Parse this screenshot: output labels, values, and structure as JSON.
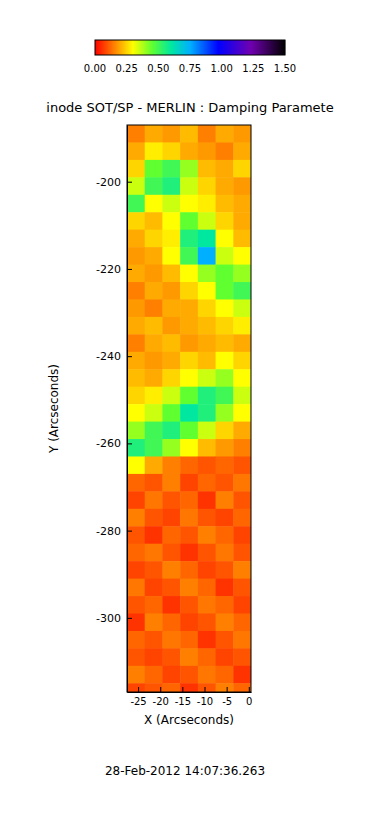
{
  "chart_data": {
    "type": "heatmap",
    "title": "inode SOT/SP - MERLIN : Damping Paramete",
    "x_label": "X (Arcseconds)",
    "y_label": "Y (Arcseconds)",
    "footer": "28-Feb-2012 14:07:36.263",
    "xlim": [
      -27.5,
      0.5
    ],
    "ylim": [
      -317,
      -187
    ],
    "xticks": [
      -25,
      -20,
      -15,
      -10,
      -5,
      0
    ],
    "yticks": [
      -300,
      -280,
      -260,
      -240,
      -220,
      -200
    ],
    "x_edges": [
      -27.5,
      -23.5,
      -19.5,
      -15.5,
      -11.5,
      -7.5,
      -3.5,
      0.5
    ],
    "y_edges": [
      -187,
      -191,
      -195,
      -199,
      -203,
      -207,
      -211,
      -215,
      -219,
      -223,
      -227,
      -231,
      -235,
      -239,
      -243,
      -247,
      -251,
      -255,
      -259,
      -263,
      -267,
      -271,
      -275,
      -279,
      -283,
      -287,
      -291,
      -295,
      -299,
      -303,
      -307,
      -311,
      -315,
      -319
    ],
    "cells": [
      [
        0.15,
        0.2,
        0.18,
        0.22,
        0.15,
        0.2,
        0.18
      ],
      [
        0.2,
        0.28,
        0.25,
        0.2,
        0.18,
        0.15,
        0.2
      ],
      [
        0.25,
        0.45,
        0.5,
        0.4,
        0.22,
        0.2,
        0.25
      ],
      [
        0.35,
        0.5,
        0.55,
        0.35,
        0.25,
        0.2,
        0.18
      ],
      [
        0.5,
        0.3,
        0.35,
        0.3,
        0.28,
        0.22,
        0.2
      ],
      [
        0.25,
        0.22,
        0.3,
        0.45,
        0.35,
        0.25,
        0.2
      ],
      [
        0.2,
        0.25,
        0.28,
        0.55,
        0.6,
        0.3,
        0.22
      ],
      [
        0.18,
        0.2,
        0.3,
        0.5,
        0.75,
        0.35,
        0.3
      ],
      [
        0.2,
        0.18,
        0.22,
        0.3,
        0.4,
        0.45,
        0.4
      ],
      [
        0.15,
        0.2,
        0.18,
        0.25,
        0.3,
        0.45,
        0.5
      ],
      [
        0.18,
        0.15,
        0.2,
        0.2,
        0.25,
        0.3,
        0.35
      ],
      [
        0.2,
        0.22,
        0.18,
        0.2,
        0.22,
        0.25,
        0.28
      ],
      [
        0.15,
        0.2,
        0.22,
        0.18,
        0.2,
        0.22,
        0.2
      ],
      [
        0.2,
        0.18,
        0.2,
        0.25,
        0.22,
        0.3,
        0.25
      ],
      [
        0.22,
        0.2,
        0.25,
        0.3,
        0.35,
        0.4,
        0.3
      ],
      [
        0.25,
        0.28,
        0.35,
        0.45,
        0.55,
        0.5,
        0.35
      ],
      [
        0.3,
        0.35,
        0.45,
        0.6,
        0.55,
        0.4,
        0.3
      ],
      [
        0.4,
        0.5,
        0.55,
        0.45,
        0.35,
        0.25,
        0.2
      ],
      [
        0.55,
        0.5,
        0.4,
        0.3,
        0.22,
        0.18,
        0.15
      ],
      [
        0.3,
        0.2,
        0.15,
        0.12,
        0.1,
        0.12,
        0.1
      ],
      [
        0.12,
        0.1,
        0.15,
        0.08,
        0.12,
        0.1,
        0.14
      ],
      [
        0.08,
        0.14,
        0.1,
        0.12,
        0.06,
        0.15,
        0.1
      ],
      [
        0.15,
        0.1,
        0.08,
        0.14,
        0.1,
        0.08,
        0.12
      ],
      [
        0.1,
        0.06,
        0.12,
        0.1,
        0.15,
        0.12,
        0.08
      ],
      [
        0.12,
        0.14,
        0.1,
        0.06,
        0.1,
        0.14,
        0.1
      ],
      [
        0.08,
        0.1,
        0.15,
        0.12,
        0.08,
        0.1,
        0.15
      ],
      [
        0.14,
        0.08,
        0.1,
        0.15,
        0.12,
        0.06,
        0.1
      ],
      [
        0.1,
        0.12,
        0.06,
        0.1,
        0.14,
        0.12,
        0.08
      ],
      [
        0.06,
        0.15,
        0.12,
        0.08,
        0.1,
        0.15,
        0.12
      ],
      [
        0.12,
        0.1,
        0.14,
        0.12,
        0.06,
        0.1,
        0.14
      ],
      [
        0.1,
        0.08,
        0.1,
        0.15,
        0.12,
        0.08,
        0.1
      ],
      [
        0.15,
        0.12,
        0.08,
        0.1,
        0.14,
        0.12,
        0.06
      ],
      [
        0.08,
        0.1,
        0.12,
        0.06,
        0.1,
        0.15,
        0.12
      ]
    ],
    "colorbar_lim": [
      0,
      1.5
    ],
    "colorbar_ticks": [
      {
        "value": 0,
        "label": "0.00"
      },
      {
        "value": 0.25,
        "label": "0.25"
      },
      {
        "value": 0.5,
        "label": "0.50"
      },
      {
        "value": 0.75,
        "label": "0.75"
      },
      {
        "value": 1,
        "label": "1.00"
      },
      {
        "value": 1.25,
        "label": "1.25"
      },
      {
        "value": 1.5,
        "label": "1.50"
      }
    ]
  }
}
